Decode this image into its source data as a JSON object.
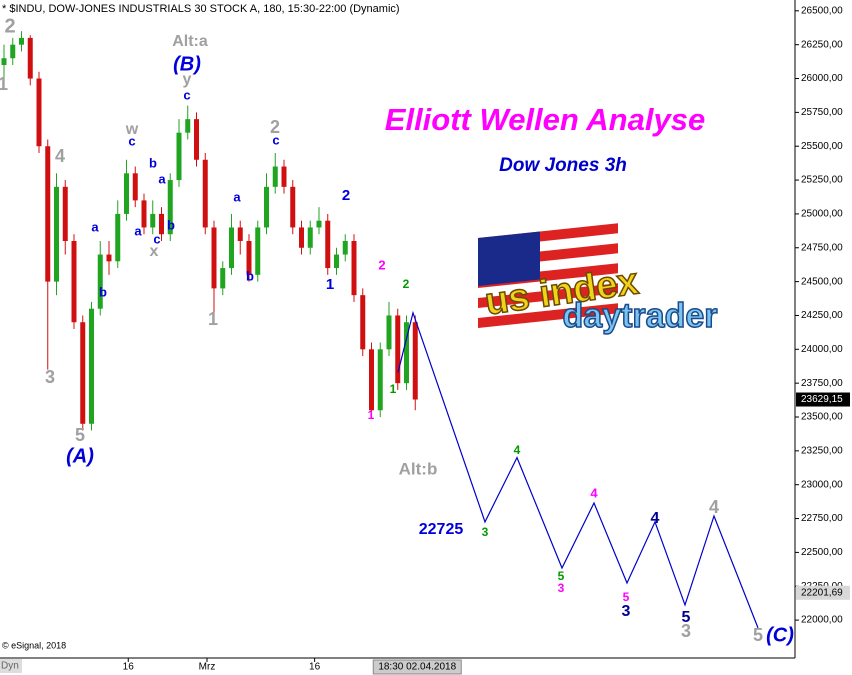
{
  "chart_data": {
    "type": "candlestick",
    "header": "* $INDU, DOW-JONES INDUSTRIALS 30 STOCK A, 180, 15:30-22:00 (Dynamic)",
    "title": "Elliott Wellen Analyse",
    "subtitle": "Dow Jones 3h",
    "copyright": "© eSignal, 2018",
    "logo": {
      "line1": "us index",
      "line2": "daytrader"
    },
    "x_axis_badge": "Dyn",
    "up_color": "#1fa51f",
    "down_color": "#d01010",
    "open": [
      26100,
      26150,
      26250,
      26300,
      26000,
      25500,
      24500,
      25200,
      24800,
      24200,
      23450,
      24300,
      24700,
      24650,
      25000,
      25300,
      25100,
      24900,
      25000,
      24850,
      25250,
      25600,
      25700,
      25400,
      24900,
      24450,
      24600,
      24900,
      24800,
      24550,
      24900,
      25200,
      25350,
      25200,
      24900,
      24750,
      24900,
      24950,
      24600,
      24700,
      24800,
      24400,
      24000,
      23550,
      24000,
      24250,
      23750,
      24200
    ],
    "high": [
      26250,
      26300,
      26350,
      26320,
      26050,
      25550,
      25300,
      25250,
      24850,
      24250,
      24350,
      24800,
      24800,
      25100,
      25400,
      25350,
      25150,
      25100,
      25050,
      25300,
      25700,
      25800,
      25750,
      25450,
      24950,
      24650,
      25000,
      24950,
      24850,
      24950,
      25300,
      25450,
      25400,
      25250,
      24950,
      24950,
      25050,
      25000,
      24750,
      24850,
      24850,
      24450,
      24050,
      24050,
      24350,
      24300,
      24250,
      24250
    ],
    "low": [
      26000,
      26100,
      26200,
      25950,
      25450,
      23850,
      24400,
      24700,
      24150,
      23400,
      23400,
      24250,
      24550,
      24600,
      24950,
      25050,
      24850,
      24850,
      24800,
      24800,
      25200,
      25550,
      25350,
      24850,
      24200,
      24400,
      24550,
      24700,
      24500,
      24500,
      24850,
      25150,
      25150,
      24850,
      24700,
      24700,
      24850,
      24550,
      24550,
      24650,
      24350,
      23950,
      23500,
      23500,
      23950,
      23700,
      23700,
      23550
    ],
    "close": [
      26150,
      26250,
      26300,
      26000,
      25500,
      24500,
      25200,
      24800,
      24200,
      23450,
      24300,
      24700,
      24650,
      25000,
      25300,
      25100,
      24900,
      25000,
      24850,
      25250,
      25600,
      25700,
      25400,
      24900,
      24450,
      24600,
      24900,
      24800,
      24550,
      24900,
      25200,
      25350,
      25200,
      24900,
      24750,
      24900,
      24950,
      24600,
      24700,
      24800,
      24400,
      24000,
      23550,
      24000,
      24250,
      23750,
      24200,
      23629.15
    ],
    "projection": {
      "color": "#0000cc",
      "x": [
        45.03,
        46.74,
        54.97,
        58.63,
        63.77,
        67.43,
        71.2,
        74.4,
        77.83,
        81.14,
        86.17
      ],
      "values": [
        23830,
        24270,
        22725,
        23200,
        22385,
        22865,
        22274,
        22725,
        22112,
        22769,
        21942
      ]
    },
    "xlim": [
      -0.457,
      90.4
    ],
    "xticks": [
      {
        "value": 14.2,
        "label": "16"
      },
      {
        "value": 23.2,
        "label": "Mrz"
      },
      {
        "value": 35.5,
        "label": "16"
      }
    ],
    "cursor_label": {
      "value": 47,
      "label": "18:30 02.04.2018"
    },
    "ylim": [
      21720,
      26580
    ],
    "yticks": [
      {
        "value": 22000,
        "label": "22000,00"
      },
      {
        "value": 22250,
        "label": "22250,00"
      },
      {
        "value": 22500,
        "label": "22500,00"
      },
      {
        "value": 22750,
        "label": "22750,00"
      },
      {
        "value": 23000,
        "label": "23000,00"
      },
      {
        "value": 23250,
        "label": "23250,00"
      },
      {
        "value": 23500,
        "label": "23500,00"
      },
      {
        "value": 23750,
        "label": "23750,00"
      },
      {
        "value": 24000,
        "label": "24000,00"
      },
      {
        "value": 24250,
        "label": "24250,00"
      },
      {
        "value": 24500,
        "label": "24500,00"
      },
      {
        "value": 24750,
        "label": "24750,00"
      },
      {
        "value": 25000,
        "label": "25000,00"
      },
      {
        "value": 25250,
        "label": "25250,00"
      },
      {
        "value": 25500,
        "label": "25500,00"
      },
      {
        "value": 25750,
        "label": "25750,00"
      },
      {
        "value": 26000,
        "label": "26000,00"
      },
      {
        "value": 26250,
        "label": "26250,00"
      },
      {
        "value": 26500,
        "label": "26500,00"
      }
    ],
    "last_price": {
      "value": 23629.15,
      "label": "23629,15"
    },
    "ref_price": {
      "value": 22201.69,
      "label": "22201,69"
    },
    "annotations": [
      {
        "text": "2",
        "color": "#a0a0a0"
      },
      {
        "text": "1",
        "color": "#a0a0a0"
      },
      {
        "text": "4",
        "color": "#a0a0a0"
      },
      {
        "text": "3",
        "color": "#a0a0a0"
      },
      {
        "text": "5",
        "color": "#a0a0a0"
      },
      {
        "text": "(A)",
        "color": "#0000dd"
      },
      {
        "text": "a",
        "color": "#0000dd"
      },
      {
        "text": "b",
        "color": "#0000dd"
      },
      {
        "text": "w",
        "color": "#a0a0a0"
      },
      {
        "text": "c",
        "color": "#0000dd"
      },
      {
        "text": "b",
        "color": "#0000dd"
      },
      {
        "text": "a",
        "color": "#0000dd"
      },
      {
        "text": "a",
        "color": "#0000dd"
      },
      {
        "text": "c",
        "color": "#0000dd"
      },
      {
        "text": "b",
        "color": "#0000dd"
      },
      {
        "text": "x",
        "color": "#a0a0a0"
      },
      {
        "text": "y",
        "color": "#a0a0a0"
      },
      {
        "text": "c",
        "color": "#0000dd"
      },
      {
        "text": "Alt:a",
        "color": "#a0a0a0"
      },
      {
        "text": "(B)",
        "color": "#0000dd"
      },
      {
        "text": "a",
        "color": "#0000dd"
      },
      {
        "text": "b",
        "color": "#0000dd"
      },
      {
        "text": "1",
        "color": "#a0a0a0"
      },
      {
        "text": "2",
        "color": "#a0a0a0"
      },
      {
        "text": "c",
        "color": "#0000dd"
      },
      {
        "text": "2",
        "color": "#0000dd"
      },
      {
        "text": "1",
        "color": "#0000dd"
      },
      {
        "text": "2",
        "color": "#ff00ff"
      },
      {
        "text": "2",
        "color": "#009900"
      },
      {
        "text": "1",
        "color": "#009900"
      },
      {
        "text": "1",
        "color": "#ff00ff"
      },
      {
        "text": "Alt:b",
        "color": "#a0a0a0"
      },
      {
        "text": "22725",
        "color": "#0000dd"
      },
      {
        "text": "3",
        "color": "#009900"
      },
      {
        "text": "4",
        "color": "#009900"
      },
      {
        "text": "5",
        "color": "#009900"
      },
      {
        "text": "3",
        "color": "#ff00ff"
      },
      {
        "text": "4",
        "color": "#ff00ff"
      },
      {
        "text": "5",
        "color": "#ff00ff"
      },
      {
        "text": "3",
        "color": "#000099"
      },
      {
        "text": "4",
        "color": "#000099"
      },
      {
        "text": "5",
        "color": "#000099"
      },
      {
        "text": "3",
        "color": "#a0a0a0"
      },
      {
        "text": "4",
        "color": "#a0a0a0"
      },
      {
        "text": "5",
        "color": "#a0a0a0"
      },
      {
        "text": "(C)",
        "color": "#0000dd"
      }
    ]
  }
}
